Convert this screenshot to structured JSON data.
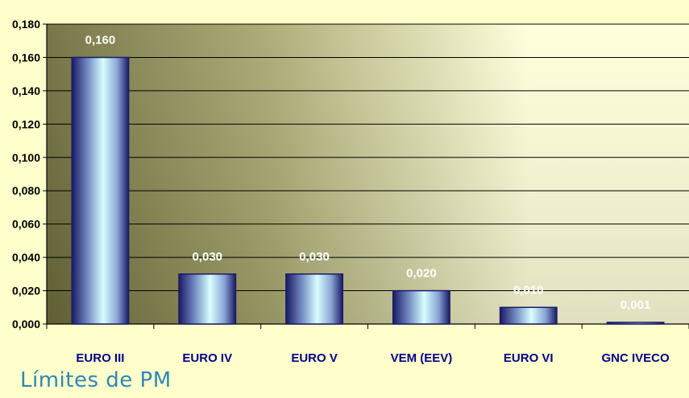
{
  "footer": {
    "title": "Límites de PM"
  },
  "colors": {
    "page_background": "#ffffcc",
    "plot_bg_dark": "#6b6b3a",
    "plot_bg_light": "#ffffd9",
    "bar_edge": "#1a1a66",
    "bar_center": "#d8ffff",
    "category_text": "#00008b",
    "data_label_text": "#ffffff",
    "footer_text": "#2e86b8"
  },
  "chart_data": {
    "type": "bar",
    "categories": [
      "EURO III",
      "EURO IV",
      "EURO V",
      "VEM (EEV)",
      "EURO VI",
      "GNC IVECO"
    ],
    "values": [
      0.16,
      0.03,
      0.03,
      0.02,
      0.01,
      0.001
    ],
    "data_labels": [
      "0,160",
      "0,030",
      "0,030",
      "0,020",
      "0,010",
      "0,001"
    ],
    "yticks": [
      0.0,
      0.02,
      0.04,
      0.06,
      0.08,
      0.1,
      0.12,
      0.14,
      0.16,
      0.18
    ],
    "ytick_labels": [
      "0,000",
      "0,020",
      "0,040",
      "0,060",
      "0,080",
      "0,100",
      "0,120",
      "0,140",
      "0,160",
      "0,180"
    ],
    "ylim": [
      0,
      0.18
    ],
    "grid": true,
    "title": "",
    "xlabel": "",
    "ylabel": ""
  }
}
